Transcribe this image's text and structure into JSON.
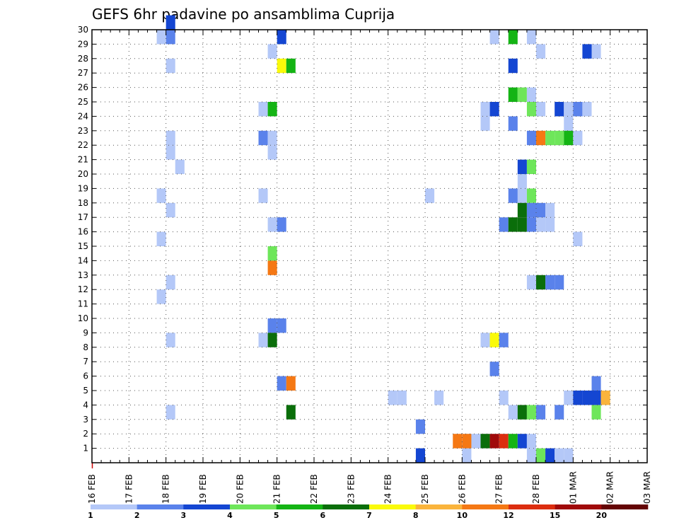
{
  "chart_data": {
    "type": "heatmap",
    "title": "GEFS 6hr padavine po ansamblima Cuprija",
    "y_ticks": [
      "1",
      "2",
      "3",
      "4",
      "5",
      "6",
      "7",
      "8",
      "9",
      "10",
      "11",
      "12",
      "13",
      "14",
      "15",
      "16",
      "17",
      "18",
      "19",
      "20",
      "21",
      "22",
      "23",
      "24",
      "25",
      "26",
      "27",
      "28",
      "29",
      "30"
    ],
    "ylim": [
      0,
      30
    ],
    "x_ticks": [
      "16 FEB",
      "17 FEB",
      "18 FEB",
      "19 FEB",
      "20 FEB",
      "21 FEB",
      "22 FEB",
      "23 FEB",
      "24 FEB",
      "25 FEB",
      "26 FEB",
      "27 FEB",
      "28 FEB",
      "01 MAR",
      "02 MAR",
      "03 MAR"
    ],
    "x_steps_per_day": 4,
    "grid": true,
    "colorbar": {
      "labels": [
        "1",
        "2",
        "3",
        "4",
        "5",
        "6",
        "7",
        "8",
        "10",
        "12",
        "15",
        "20"
      ],
      "colors": [
        "#b4c8f8",
        "#5a82eb",
        "#1446d2",
        "#6ee65a",
        "#14b414",
        "#0a6e0a",
        "#fafa0a",
        "#fab43c",
        "#f57814",
        "#dc2d0f",
        "#a00a0a",
        "#640505"
      ]
    },
    "cells_note": "values are precipitation class index (1-12) at [step index from 16 FEB 00z, ensemble member]",
    "cells": [
      [
        8,
        30,
        3
      ],
      [
        8,
        29,
        2
      ],
      [
        7,
        29,
        1
      ],
      [
        8,
        27,
        1
      ],
      [
        7,
        18,
        1
      ],
      [
        8,
        17,
        1
      ],
      [
        7,
        15,
        1
      ],
      [
        8,
        12,
        1
      ],
      [
        7,
        11,
        1
      ],
      [
        8,
        8,
        1
      ],
      [
        8,
        3,
        1
      ],
      [
        9,
        20,
        1
      ],
      [
        8,
        21,
        1
      ],
      [
        8,
        22,
        1
      ],
      [
        20,
        29,
        3
      ],
      [
        19,
        28,
        1
      ],
      [
        20,
        27,
        7
      ],
      [
        21,
        27,
        5
      ],
      [
        18,
        24,
        1
      ],
      [
        19,
        24,
        5
      ],
      [
        18,
        22,
        2
      ],
      [
        19,
        22,
        1
      ],
      [
        19,
        21,
        1
      ],
      [
        18,
        18,
        1
      ],
      [
        19,
        16,
        1
      ],
      [
        20,
        16,
        2
      ],
      [
        19,
        14,
        4
      ],
      [
        19,
        13,
        9
      ],
      [
        19,
        9,
        2
      ],
      [
        20,
        9,
        2
      ],
      [
        18,
        8,
        1
      ],
      [
        19,
        8,
        6
      ],
      [
        20,
        5,
        2
      ],
      [
        21,
        5,
        9
      ],
      [
        21,
        3,
        6
      ],
      [
        32,
        4,
        1
      ],
      [
        33,
        4,
        1
      ],
      [
        37,
        4,
        1
      ],
      [
        36,
        18,
        1
      ],
      [
        35,
        2,
        2
      ],
      [
        35,
        0,
        3
      ],
      [
        39,
        1,
        9
      ],
      [
        40,
        1,
        1
      ],
      [
        41,
        1,
        1
      ],
      [
        42,
        1,
        6
      ],
      [
        43,
        1,
        11
      ],
      [
        44,
        1,
        10
      ],
      [
        45,
        1,
        5
      ],
      [
        46,
        1,
        3
      ],
      [
        47,
        1,
        1
      ],
      [
        40,
        0,
        1
      ],
      [
        47,
        0,
        1
      ],
      [
        43,
        29,
        1
      ],
      [
        45,
        29,
        5
      ],
      [
        47,
        29,
        1
      ],
      [
        48,
        28,
        1
      ],
      [
        45,
        27,
        3
      ],
      [
        45,
        25,
        5
      ],
      [
        46,
        25,
        4
      ],
      [
        47,
        25,
        1
      ],
      [
        42,
        24,
        1
      ],
      [
        43,
        24,
        3
      ],
      [
        47,
        24,
        4
      ],
      [
        48,
        24,
        1
      ],
      [
        50,
        24,
        3
      ],
      [
        51,
        24,
        1
      ],
      [
        52,
        24,
        2
      ],
      [
        53,
        24,
        1
      ],
      [
        42,
        23,
        1
      ],
      [
        45,
        23,
        2
      ],
      [
        51,
        23,
        1
      ],
      [
        47,
        22,
        2
      ],
      [
        48,
        22,
        9
      ],
      [
        49,
        22,
        4
      ],
      [
        50,
        22,
        4
      ],
      [
        51,
        22,
        5
      ],
      [
        52,
        22,
        1
      ],
      [
        46,
        20,
        3
      ],
      [
        47,
        20,
        4
      ],
      [
        46,
        19,
        1
      ],
      [
        46,
        18,
        1
      ],
      [
        45,
        18,
        2
      ],
      [
        47,
        18,
        4
      ],
      [
        44,
        16,
        2
      ],
      [
        45,
        16,
        6
      ],
      [
        46,
        16,
        6
      ],
      [
        47,
        16,
        2
      ],
      [
        48,
        16,
        1
      ],
      [
        49,
        16,
        1
      ],
      [
        46,
        17,
        6
      ],
      [
        47,
        17,
        2
      ],
      [
        48,
        17,
        2
      ],
      [
        49,
        17,
        1
      ],
      [
        53,
        28,
        3
      ],
      [
        54,
        28,
        1
      ],
      [
        52,
        15,
        1
      ],
      [
        47,
        12,
        1
      ],
      [
        48,
        12,
        6
      ],
      [
        49,
        12,
        2
      ],
      [
        50,
        12,
        2
      ],
      [
        42,
        8,
        1
      ],
      [
        43,
        8,
        7
      ],
      [
        44,
        8,
        2
      ],
      [
        43,
        6,
        2
      ],
      [
        44,
        4,
        1
      ],
      [
        45,
        3,
        1
      ],
      [
        46,
        3,
        6
      ],
      [
        47,
        3,
        4
      ],
      [
        48,
        3,
        2
      ],
      [
        50,
        3,
        2
      ],
      [
        54,
        3,
        4
      ],
      [
        54,
        5,
        2
      ],
      [
        51,
        4,
        1
      ],
      [
        52,
        4,
        3
      ],
      [
        53,
        4,
        3
      ],
      [
        54,
        4,
        3
      ],
      [
        55,
        4,
        8
      ],
      [
        48,
        0,
        4
      ],
      [
        49,
        0,
        3
      ],
      [
        50,
        0,
        1
      ],
      [
        51,
        0,
        1
      ],
      [
        40,
        1,
        9
      ]
    ]
  }
}
